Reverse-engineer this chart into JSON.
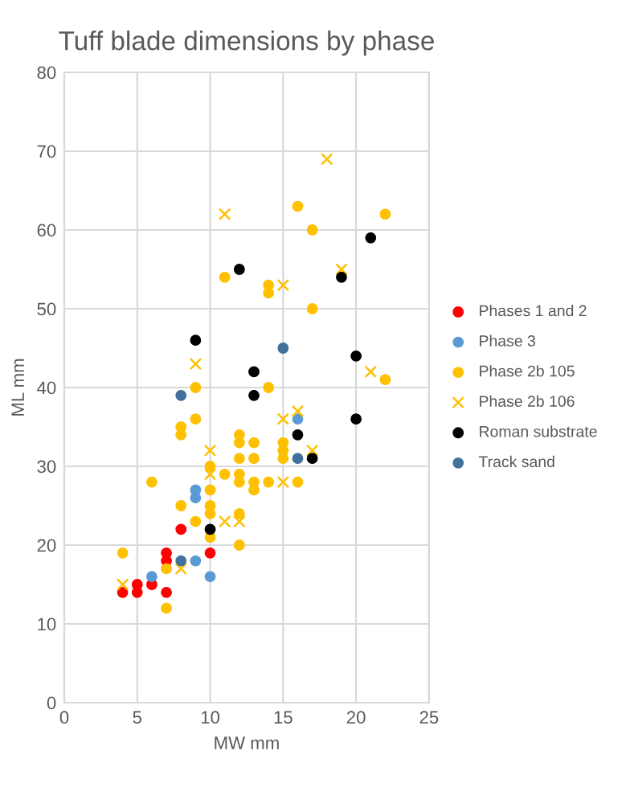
{
  "chart_data": {
    "type": "scatter",
    "title": "Tuff blade dimensions by phase",
    "xlabel": "MW mm",
    "ylabel": "ML mm",
    "xlim": [
      0,
      25
    ],
    "xticks": [
      0,
      5,
      10,
      15,
      20,
      25
    ],
    "ylim": [
      0,
      80
    ],
    "yticks": [
      0,
      10,
      20,
      30,
      40,
      50,
      60,
      70,
      80
    ],
    "grid": true,
    "legend": "right",
    "series": [
      {
        "name": "Phases 1 and 2",
        "color": "#ff0000",
        "marker": "circle",
        "x": [
          4,
          5,
          5,
          6,
          7,
          7,
          7,
          8,
          10
        ],
        "values": [
          14,
          14,
          15,
          15,
          14,
          18,
          19,
          22,
          19
        ]
      },
      {
        "name": "Phase 3",
        "color": "#5b9bd5",
        "marker": "circle",
        "x": [
          6,
          9,
          9,
          9,
          10,
          16
        ],
        "values": [
          16,
          18,
          26,
          27,
          16,
          36
        ]
      },
      {
        "name": "Phase 2b 105",
        "color": "#ffc000",
        "marker": "circle",
        "x": [
          4,
          6,
          7,
          7,
          8,
          8,
          8,
          9,
          9,
          9,
          10,
          10,
          10,
          10,
          10,
          11,
          11,
          12,
          12,
          12,
          12,
          12,
          12,
          12,
          13,
          13,
          13,
          13,
          14,
          14,
          14,
          14,
          15,
          15,
          15,
          16,
          16,
          17,
          17,
          22,
          22
        ],
        "values": [
          19,
          28,
          17,
          12,
          25,
          35,
          34,
          23,
          36,
          40,
          21,
          24,
          25,
          27,
          30,
          29,
          54,
          20,
          24,
          28,
          29,
          31,
          33,
          34,
          27,
          28,
          31,
          33,
          28,
          40,
          52,
          53,
          31,
          32,
          33,
          28,
          63,
          50,
          60,
          41,
          62
        ]
      },
      {
        "name": "Phase 2b 106",
        "color": "#ffc000",
        "marker": "cross",
        "x": [
          4,
          8,
          9,
          10,
          10,
          11,
          11,
          12,
          15,
          15,
          15,
          16,
          17,
          18,
          19,
          21
        ],
        "values": [
          15,
          17,
          43,
          29,
          32,
          23,
          62,
          23,
          28,
          36,
          53,
          37,
          32,
          69,
          55,
          42
        ]
      },
      {
        "name": "Roman substrate",
        "color": "#000000",
        "marker": "circle",
        "x": [
          9,
          10,
          12,
          13,
          13,
          16,
          17,
          19,
          20,
          20,
          21
        ],
        "values": [
          46,
          22,
          55,
          39,
          42,
          34,
          31,
          54,
          36,
          44,
          59
        ]
      },
      {
        "name": "Track sand",
        "color": "#41719c",
        "marker": "circle",
        "x": [
          8,
          8,
          15,
          16
        ],
        "values": [
          18,
          39,
          45,
          31
        ]
      }
    ]
  }
}
